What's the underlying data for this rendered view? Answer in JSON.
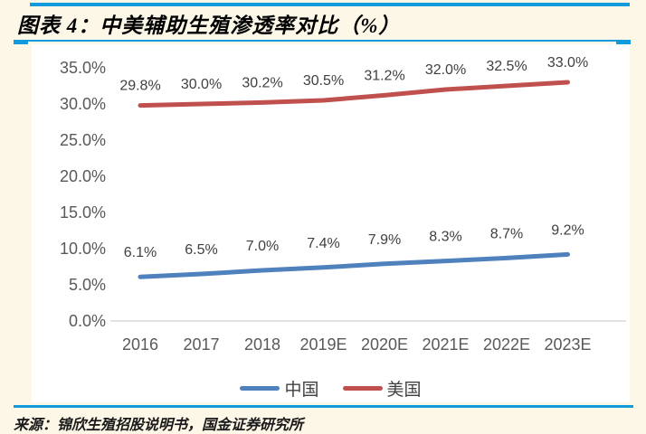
{
  "header": {
    "title": "图表 4：中美辅助生殖渗透率对比（%）"
  },
  "chart_data": {
    "type": "line",
    "title": "中美辅助生殖渗透率对比（%）",
    "xlabel": "",
    "ylabel": "",
    "categories": [
      "2016",
      "2017",
      "2018",
      "2019E",
      "2020E",
      "2021E",
      "2022E",
      "2023E"
    ],
    "series": [
      {
        "name": "中国",
        "color": "#4F81BD",
        "values": [
          6.1,
          6.5,
          7.0,
          7.4,
          7.9,
          8.3,
          8.7,
          9.2
        ],
        "labels": [
          "6.1%",
          "6.5%",
          "7.0%",
          "7.4%",
          "7.9%",
          "8.3%",
          "8.7%",
          "9.2%"
        ]
      },
      {
        "name": "美国",
        "color": "#C0504D",
        "values": [
          29.8,
          30.0,
          30.2,
          30.5,
          31.2,
          32.0,
          32.5,
          33.0
        ],
        "labels": [
          "29.8%",
          "30.0%",
          "30.2%",
          "30.5%",
          "31.2%",
          "32.0%",
          "32.5%",
          "33.0%"
        ]
      }
    ],
    "y_ticks": [
      "35.0%",
      "30.0%",
      "25.0%",
      "20.0%",
      "15.0%",
      "10.0%",
      "5.0%",
      "0.0%"
    ],
    "ylim": [
      0,
      35
    ],
    "y_step": 5,
    "grid": false,
    "legend_position": "bottom"
  },
  "legend": {
    "items": [
      {
        "label": "中国",
        "color": "#4F81BD"
      },
      {
        "label": "美国",
        "color": "#C0504D"
      }
    ]
  },
  "footer": {
    "source": "来源：锦欣生殖招股说明书，国金证券研究所"
  },
  "colors": {
    "accent_blue": "#129BDC",
    "background": "#FDF7E8",
    "panel": "#FFFFFF",
    "axis_line": "#D9D9D9",
    "tick_text": "#595959",
    "data_label_text": "#3F3F3F",
    "china_line": "#4F81BD",
    "us_line": "#C0504D"
  }
}
